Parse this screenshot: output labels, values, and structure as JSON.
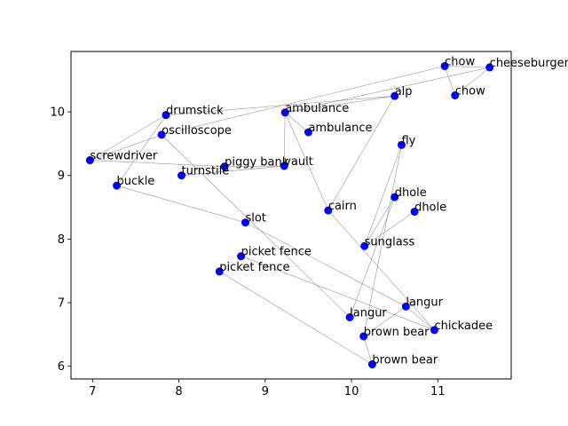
{
  "chart_data": {
    "type": "scatter",
    "title": "",
    "xlabel": "",
    "ylabel": "",
    "xlim": [
      6.75,
      11.85
    ],
    "ylim": [
      5.8,
      10.95
    ],
    "xticks": [
      7,
      8,
      9,
      10,
      11
    ],
    "yticks": [
      6,
      7,
      8,
      9,
      10
    ],
    "grid": false,
    "colors": {
      "point": "#0000ff",
      "edge": "#9a9a9a"
    },
    "points": [
      {
        "label": "chow",
        "x": 11.08,
        "y": 10.72
      },
      {
        "label": "cheeseburger",
        "x": 11.6,
        "y": 10.7
      },
      {
        "label": "chow",
        "x": 11.2,
        "y": 10.26
      },
      {
        "label": "alp",
        "x": 10.5,
        "y": 10.25
      },
      {
        "label": "drumstick",
        "x": 7.85,
        "y": 9.95
      },
      {
        "label": "ambulance",
        "x": 9.23,
        "y": 9.99
      },
      {
        "label": "oscilloscope",
        "x": 7.8,
        "y": 9.64
      },
      {
        "label": "ambulance",
        "x": 9.5,
        "y": 9.68
      },
      {
        "label": "fly",
        "x": 10.58,
        "y": 9.48
      },
      {
        "label": "screwdriver",
        "x": 6.97,
        "y": 9.24
      },
      {
        "label": "piggy bank",
        "x": 8.53,
        "y": 9.14
      },
      {
        "label": "vault",
        "x": 9.22,
        "y": 9.15
      },
      {
        "label": "turnstile",
        "x": 8.03,
        "y": 9.0
      },
      {
        "label": "buckle",
        "x": 7.28,
        "y": 8.84
      },
      {
        "label": "dhole",
        "x": 10.5,
        "y": 8.66
      },
      {
        "label": "cairn",
        "x": 9.73,
        "y": 8.45
      },
      {
        "label": "dhole",
        "x": 10.73,
        "y": 8.43
      },
      {
        "label": "slot",
        "x": 8.77,
        "y": 8.26
      },
      {
        "label": "sunglass",
        "x": 10.15,
        "y": 7.89
      },
      {
        "label": "picket fence",
        "x": 8.72,
        "y": 7.73
      },
      {
        "label": "picket fence",
        "x": 8.47,
        "y": 7.49
      },
      {
        "label": "langur",
        "x": 10.63,
        "y": 6.94
      },
      {
        "label": "langur",
        "x": 9.98,
        "y": 6.77
      },
      {
        "label": "chickadee",
        "x": 10.96,
        "y": 6.57
      },
      {
        "label": "brown bear",
        "x": 10.14,
        "y": 6.47
      },
      {
        "label": "brown bear",
        "x": 10.24,
        "y": 6.03
      }
    ],
    "edges": [
      [
        0,
        1
      ],
      [
        1,
        2
      ],
      [
        0,
        2
      ],
      [
        1,
        5
      ],
      [
        3,
        5
      ],
      [
        3,
        4
      ],
      [
        3,
        15
      ],
      [
        0,
        6
      ],
      [
        4,
        9
      ],
      [
        4,
        13
      ],
      [
        6,
        9
      ],
      [
        6,
        22
      ],
      [
        9,
        10
      ],
      [
        10,
        11
      ],
      [
        11,
        5
      ],
      [
        11,
        12
      ],
      [
        5,
        7
      ],
      [
        5,
        15
      ],
      [
        15,
        23
      ],
      [
        12,
        11
      ],
      [
        13,
        17
      ],
      [
        17,
        21
      ],
      [
        19,
        23
      ],
      [
        20,
        25
      ],
      [
        8,
        18
      ],
      [
        8,
        24
      ],
      [
        14,
        18
      ],
      [
        14,
        22
      ],
      [
        16,
        18
      ],
      [
        21,
        23
      ],
      [
        24,
        25
      ],
      [
        21,
        24
      ]
    ]
  }
}
